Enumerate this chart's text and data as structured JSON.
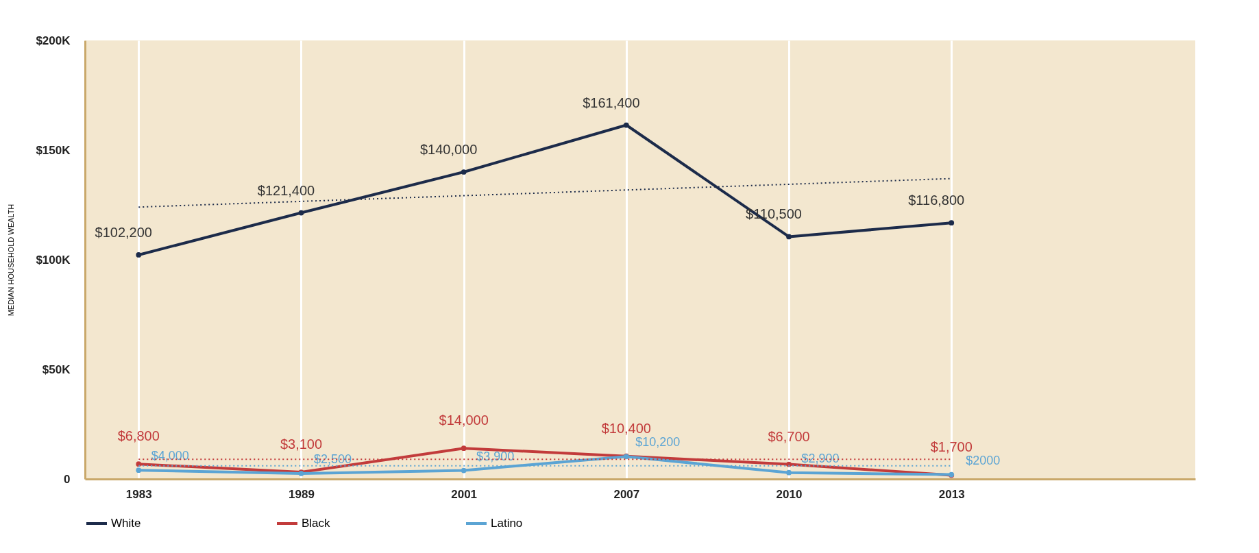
{
  "chart_data": {
    "type": "line",
    "ylabel": "MEDIAN HOUSEHOLD WEALTH",
    "categories": [
      "1983",
      "1989",
      "2001",
      "2007",
      "2010",
      "2013"
    ],
    "ylim": [
      0,
      200000
    ],
    "yticks": [
      {
        "value": 0,
        "label": "0"
      },
      {
        "value": 50000,
        "label": "$50K"
      },
      {
        "value": 100000,
        "label": "$100K"
      },
      {
        "value": 150000,
        "label": "$150K"
      },
      {
        "value": 200000,
        "label": "$200K"
      }
    ],
    "series": [
      {
        "name": "White",
        "color": "#1c2b4a",
        "values": [
          102200,
          121400,
          140000,
          161400,
          110500,
          116800
        ],
        "value_labels": [
          "$102,200",
          "$121,400",
          "$140,000",
          "$161,400",
          "$110,500",
          "$116,800"
        ]
      },
      {
        "name": "Black",
        "color": "#c23b3b",
        "values": [
          6800,
          3100,
          14000,
          10400,
          6700,
          1700
        ],
        "value_labels": [
          "$6,800",
          "$3,100",
          "$14,000",
          "$10,400",
          "$6,700",
          "$1,700"
        ]
      },
      {
        "name": "Latino",
        "color": "#5ba4d4",
        "values": [
          4000,
          2500,
          3900,
          10200,
          2900,
          2000
        ],
        "value_labels": [
          "$4,000",
          "$2,500",
          "$3,900",
          "$10,200",
          "$2,900",
          "$2000"
        ]
      },
      {
        "type": "line",
        "color": "#1c2b4a",
        "line_style": "dotted",
        "marker": "none",
        "values": [
          124000,
          126600,
          129200,
          131800,
          134400,
          137000
        ]
      },
      {
        "type": "line",
        "color": "#c23b3b",
        "line_style": "dotted",
        "marker": "none",
        "values": [
          9000,
          9000,
          9000,
          9000,
          9000,
          9000
        ]
      },
      {
        "type": "line",
        "color": "#5ba4d4",
        "line_style": "dotted",
        "marker": "none",
        "values": [
          6000,
          6000,
          6000,
          6000,
          6000,
          6000
        ]
      }
    ],
    "marker": "circle",
    "line_style": "solid",
    "grid": "x",
    "legend": "bottom"
  }
}
